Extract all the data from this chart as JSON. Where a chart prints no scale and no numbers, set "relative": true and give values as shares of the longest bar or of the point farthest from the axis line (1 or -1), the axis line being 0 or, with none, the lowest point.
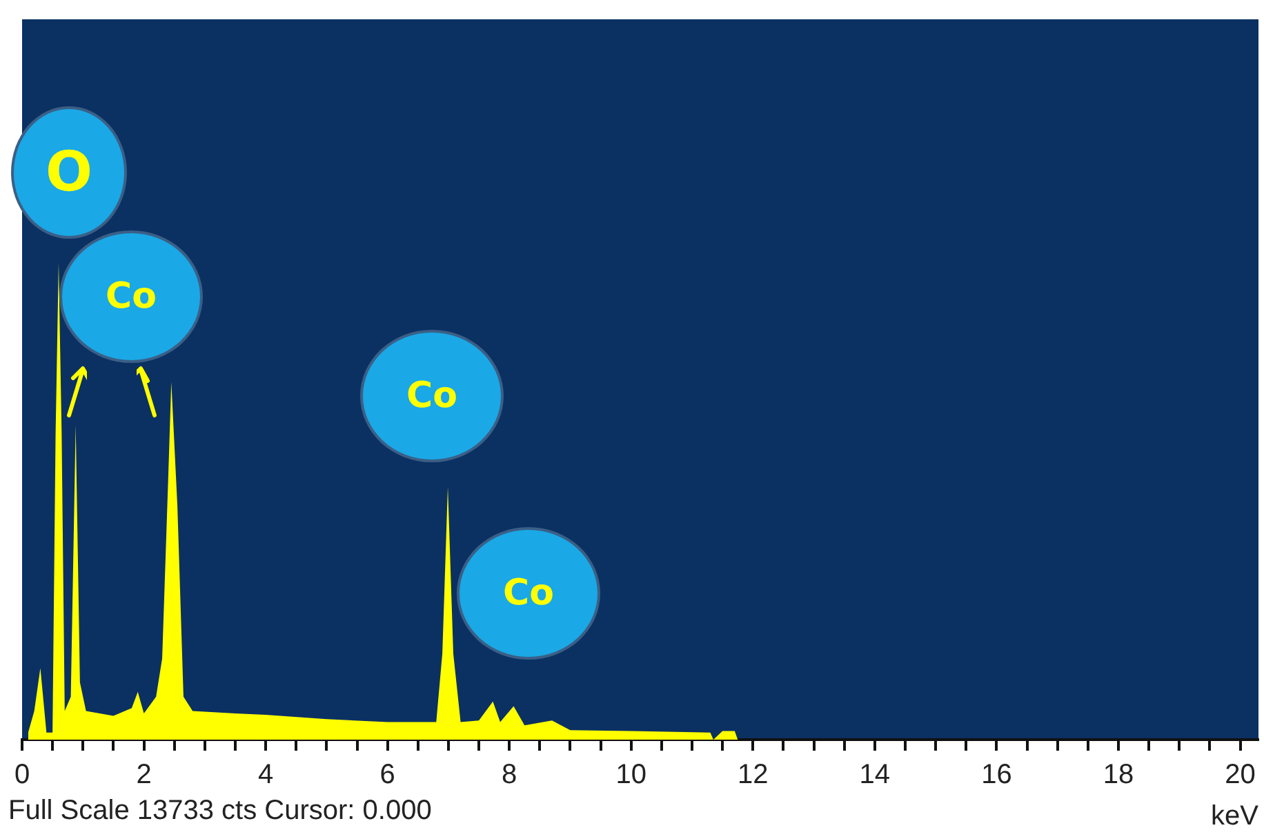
{
  "chart_data": {
    "type": "area",
    "relative": true,
    "xlabel": "keV",
    "xlim": [
      0,
      20.3
    ],
    "xticks": [
      0,
      {
        "value": 0.5,
        "label": null
      },
      {
        "value": 1,
        "label": null
      },
      {
        "value": 1.5,
        "label": null
      },
      2,
      {
        "value": 2.5,
        "label": null
      },
      {
        "value": 3,
        "label": null
      },
      {
        "value": 3.5,
        "label": null
      },
      4,
      {
        "value": 4.5,
        "label": null
      },
      {
        "value": 5,
        "label": null
      },
      {
        "value": 5.5,
        "label": null
      },
      6,
      {
        "value": 6.5,
        "label": null
      },
      {
        "value": 7,
        "label": null
      },
      {
        "value": 7.5,
        "label": null
      },
      8,
      {
        "value": 8.5,
        "label": null
      },
      {
        "value": 9,
        "label": null
      },
      {
        "value": 9.5,
        "label": null
      },
      10,
      {
        "value": 10.5,
        "label": null
      },
      {
        "value": 11,
        "label": null
      },
      {
        "value": 11.5,
        "label": null
      },
      12,
      {
        "value": 12.5,
        "label": null
      },
      {
        "value": 13,
        "label": null
      },
      {
        "value": 13.5,
        "label": null
      },
      14,
      {
        "value": 14.5,
        "label": null
      },
      {
        "value": 15,
        "label": null
      },
      {
        "value": 15.5,
        "label": null
      },
      16,
      {
        "value": 16.5,
        "label": null
      },
      {
        "value": 17,
        "label": null
      },
      {
        "value": 17.5,
        "label": null
      },
      18,
      {
        "value": 18.5,
        "label": null
      },
      {
        "value": 19,
        "label": null
      },
      {
        "value": 19.5,
        "label": null
      },
      20
    ],
    "x": [
      0.1,
      0.2,
      0.3,
      0.4,
      0.5,
      0.55,
      0.6,
      0.65,
      0.7,
      0.8,
      0.88,
      0.95,
      1.05,
      1.5,
      1.8,
      1.9,
      2.0,
      2.2,
      2.3,
      2.4,
      2.45,
      2.55,
      2.65,
      2.8,
      3.5,
      4.0,
      5.0,
      6.0,
      6.8,
      6.9,
      6.99,
      7.08,
      7.2,
      7.5,
      7.73,
      7.85,
      8.07,
      8.25,
      8.7,
      9.0,
      10.0,
      11.3,
      11.35,
      11.5,
      11.7,
      11.75,
      20.3
    ],
    "series": [
      {
        "color": "#ffff00",
        "values": [
          0.015,
          0.06,
          0.15,
          0.015,
          0.015,
          0.64,
          1,
          0.64,
          0.06,
          0.09,
          0.66,
          0.12,
          0.06,
          0.05,
          0.066,
          0.1,
          0.055,
          0.09,
          0.17,
          0.55,
          0.75,
          0.49,
          0.09,
          0.06,
          0.055,
          0.052,
          0.043,
          0.037,
          0.037,
          0.18,
          0.53,
          0.18,
          0.037,
          0.04,
          0.08,
          0.037,
          0.07,
          0.03,
          0.04,
          0.02,
          0.018,
          0.015,
          0,
          0.018,
          0.018,
          0,
          0
        ]
      }
    ],
    "legend": false,
    "grid": false,
    "tick_labels": "x",
    "annotations": [
      "O",
      "Co",
      "Co",
      "Co",
      "Full Scale 13733 cts Cursor: 0.000"
    ]
  }
}
